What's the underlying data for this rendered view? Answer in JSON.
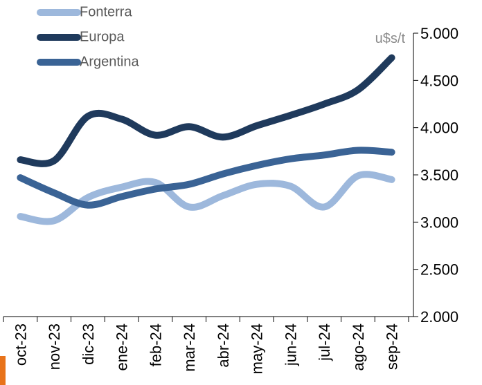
{
  "chart_data": {
    "type": "line",
    "annotation": "u$s/t",
    "categories": [
      "oct-23",
      "nov-23",
      "dic-23",
      "ene-24",
      "feb-24",
      "mar-24",
      "abr-24",
      "may-24",
      "jun-24",
      "jul-24",
      "ago-24",
      "sep-24"
    ],
    "series": [
      {
        "name": "Fonterra",
        "color": "#9db8dc",
        "values": [
          3060,
          3015,
          3260,
          3370,
          3420,
          3160,
          3280,
          3400,
          3380,
          3160,
          3490,
          3450
        ]
      },
      {
        "name": "Europa",
        "color": "#1f3a5c",
        "values": [
          3660,
          3650,
          4120,
          4090,
          3920,
          4010,
          3900,
          4020,
          4130,
          4250,
          4400,
          4740
        ]
      },
      {
        "name": "Argentina",
        "color": "#3a6395",
        "values": [
          3470,
          3310,
          3180,
          3270,
          3350,
          3400,
          3510,
          3600,
          3670,
          3710,
          3760,
          3740
        ]
      }
    ],
    "ylim": [
      2000,
      5000
    ],
    "yticks": [
      {
        "value": 2000,
        "label": "2.000"
      },
      {
        "value": 2500,
        "label": "2.500"
      },
      {
        "value": 3000,
        "label": "3.000"
      },
      {
        "value": 3500,
        "label": "3.500"
      },
      {
        "value": 4000,
        "label": "4.000"
      },
      {
        "value": 4500,
        "label": "4.500"
      },
      {
        "value": 5000,
        "label": "5.000"
      }
    ],
    "y_axis_side": "right",
    "legend": "top-left"
  }
}
